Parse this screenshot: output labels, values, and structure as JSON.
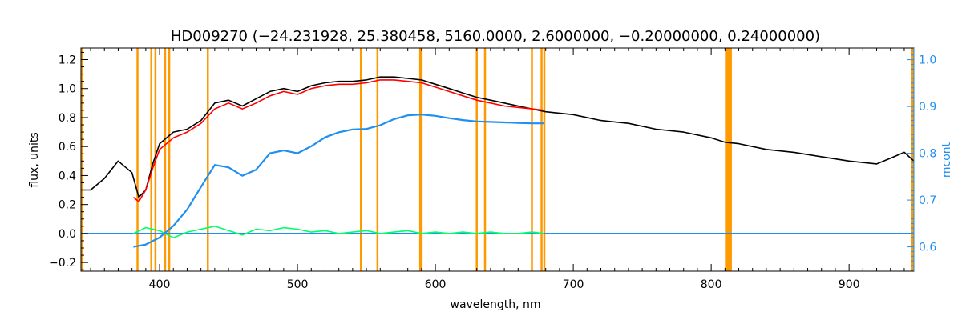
{
  "chart_data": {
    "type": "line",
    "title": "HD009270   (−24.231928, 25.380458, 5160.0000, 2.6000000, −0.20000000, 0.24000000)",
    "xlabel": "wavelength, nm",
    "ylabel": "flux, units",
    "y2label": "mcont",
    "xlim": [
      343,
      947
    ],
    "ylim": [
      -0.26,
      1.28
    ],
    "y2lim": [
      0.548,
      1.025
    ],
    "xticks": [
      400,
      500,
      600,
      700,
      800,
      900
    ],
    "yticks": [
      -0.2,
      0.0,
      0.2,
      0.4,
      0.6,
      0.8,
      1.0,
      1.2
    ],
    "y2ticks": [
      0.6,
      0.7,
      0.8,
      0.9,
      1.0
    ],
    "grid": false,
    "colors": {
      "observed": "#000000",
      "model": "#ff0000",
      "residual": "#00ff66",
      "continuum": "#1f8ff0",
      "masks": "#ff9900",
      "right_axis": "#1f8ff0"
    },
    "vertical_lines": [
      344,
      384,
      394,
      397,
      404,
      407,
      435,
      546,
      558,
      589,
      590,
      630,
      636,
      670,
      677,
      679,
      946
    ],
    "mask_band": [
      810,
      815
    ],
    "series": [
      {
        "role": "observed",
        "x": [
          343,
          350,
          360,
          370,
          380,
          385,
          390,
          395,
          400,
          410,
          420,
          430,
          440,
          450,
          460,
          470,
          480,
          490,
          500,
          510,
          520,
          530,
          540,
          550,
          560,
          570,
          580,
          590,
          600,
          610,
          620,
          630,
          640,
          650,
          660,
          670,
          680,
          700,
          720,
          740,
          760,
          780,
          800,
          810,
          820,
          840,
          860,
          880,
          900,
          920,
          930,
          940,
          947
        ],
        "y": [
          0.3,
          0.3,
          0.38,
          0.5,
          0.42,
          0.25,
          0.3,
          0.48,
          0.62,
          0.7,
          0.72,
          0.78,
          0.9,
          0.92,
          0.88,
          0.93,
          0.98,
          1.0,
          0.98,
          1.02,
          1.04,
          1.05,
          1.05,
          1.06,
          1.08,
          1.08,
          1.07,
          1.06,
          1.03,
          1.0,
          0.97,
          0.94,
          0.92,
          0.9,
          0.88,
          0.86,
          0.84,
          0.82,
          0.78,
          0.76,
          0.72,
          0.7,
          0.66,
          0.63,
          0.62,
          0.58,
          0.56,
          0.53,
          0.5,
          0.48,
          0.52,
          0.56,
          0.5
        ]
      },
      {
        "role": "model",
        "x": [
          381,
          385,
          390,
          395,
          400,
          410,
          420,
          430,
          440,
          450,
          460,
          470,
          480,
          490,
          500,
          510,
          520,
          530,
          540,
          550,
          560,
          570,
          580,
          590,
          600,
          610,
          620,
          630,
          640,
          650,
          660,
          670,
          679
        ],
        "y": [
          0.25,
          0.22,
          0.3,
          0.45,
          0.58,
          0.66,
          0.7,
          0.76,
          0.86,
          0.9,
          0.86,
          0.9,
          0.95,
          0.98,
          0.96,
          1.0,
          1.02,
          1.03,
          1.03,
          1.04,
          1.06,
          1.06,
          1.05,
          1.04,
          1.01,
          0.98,
          0.95,
          0.92,
          0.9,
          0.88,
          0.87,
          0.86,
          0.85
        ]
      },
      {
        "role": "continuum",
        "axis": "right",
        "x": [
          381,
          390,
          400,
          410,
          420,
          430,
          440,
          450,
          460,
          470,
          480,
          490,
          500,
          510,
          520,
          530,
          540,
          550,
          560,
          570,
          580,
          590,
          600,
          610,
          620,
          630,
          640,
          650,
          660,
          670,
          679
        ],
        "y": [
          0.6,
          0.605,
          0.62,
          0.645,
          0.68,
          0.728,
          0.775,
          0.77,
          0.752,
          0.765,
          0.8,
          0.806,
          0.8,
          0.815,
          0.834,
          0.845,
          0.851,
          0.852,
          0.86,
          0.873,
          0.881,
          0.883,
          0.88,
          0.875,
          0.871,
          0.868,
          0.867,
          0.866,
          0.865,
          0.864,
          0.864
        ]
      },
      {
        "role": "zero-baseline",
        "x": [
          343,
          947
        ],
        "y": [
          0.0,
          0.0
        ]
      },
      {
        "role": "residual",
        "x": [
          381,
          390,
          400,
          410,
          420,
          430,
          440,
          450,
          460,
          470,
          480,
          490,
          500,
          510,
          520,
          530,
          540,
          550,
          560,
          570,
          580,
          590,
          600,
          610,
          620,
          630,
          640,
          650,
          660,
          670,
          679
        ],
        "y": [
          0.0,
          0.04,
          0.02,
          -0.03,
          0.01,
          0.03,
          0.05,
          0.02,
          -0.01,
          0.03,
          0.02,
          0.04,
          0.03,
          0.01,
          0.02,
          0.0,
          0.01,
          0.02,
          0.0,
          0.01,
          0.02,
          0.0,
          0.01,
          0.0,
          0.01,
          0.0,
          0.01,
          0.0,
          0.0,
          0.01,
          0.0
        ]
      }
    ]
  }
}
